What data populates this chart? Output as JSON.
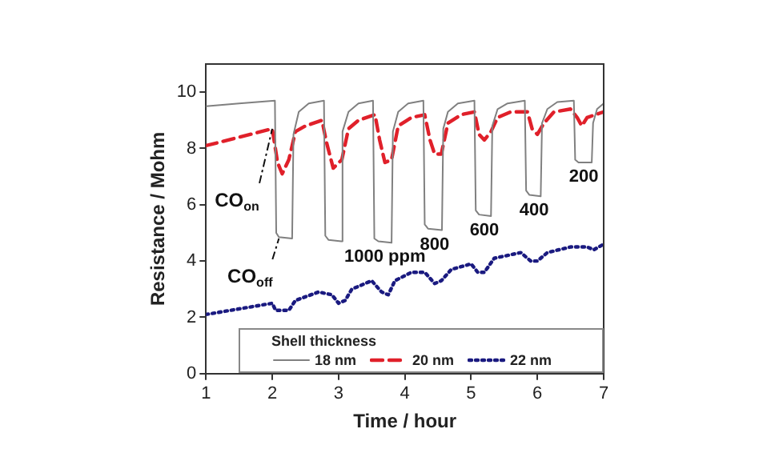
{
  "chart_data": {
    "type": "line",
    "xlabel": "Time / hour",
    "ylabel": "Resistance / Mohm",
    "legend_title": "Shell thickness",
    "legend": "bottom",
    "xlim": [
      1,
      7
    ],
    "xticks": [
      1,
      2,
      3,
      4,
      5,
      6,
      7
    ],
    "ylim": [
      0,
      11
    ],
    "yticks": [
      0,
      2,
      4,
      6,
      8,
      10
    ],
    "grid": false,
    "marker": "none",
    "series": [
      {
        "name": "18 nm",
        "color": "#808080",
        "line_style": "solid",
        "x": [
          1.0,
          1.5,
          2.04,
          2.06,
          2.1,
          2.3,
          2.32,
          2.4,
          2.55,
          2.78,
          2.8,
          2.85,
          3.04,
          3.06,
          3.15,
          3.3,
          3.52,
          3.54,
          3.6,
          3.8,
          3.82,
          3.9,
          4.05,
          4.28,
          4.3,
          4.35,
          4.56,
          4.58,
          4.65,
          4.8,
          5.05,
          5.07,
          5.12,
          5.3,
          5.32,
          5.4,
          5.55,
          5.81,
          5.83,
          5.88,
          6.05,
          6.07,
          6.15,
          6.3,
          6.55,
          6.57,
          6.62,
          6.82,
          6.84,
          6.9,
          7.0
        ],
        "values": [
          9.5,
          9.6,
          9.7,
          5.0,
          4.85,
          4.8,
          8.5,
          9.3,
          9.6,
          9.7,
          4.9,
          4.75,
          4.7,
          8.6,
          9.3,
          9.6,
          9.7,
          4.8,
          4.7,
          4.65,
          8.6,
          9.3,
          9.6,
          9.7,
          5.3,
          5.15,
          5.1,
          8.7,
          9.3,
          9.6,
          9.7,
          5.8,
          5.65,
          5.6,
          8.8,
          9.4,
          9.6,
          9.7,
          6.5,
          6.35,
          6.3,
          8.9,
          9.4,
          9.65,
          9.7,
          7.6,
          7.5,
          7.5,
          8.9,
          9.4,
          9.6
        ]
      },
      {
        "name": "20 nm",
        "color": "#e0202a",
        "line_style": "dashed",
        "x": [
          1.0,
          1.5,
          2.0,
          2.08,
          2.15,
          2.25,
          2.35,
          2.5,
          2.75,
          2.82,
          2.92,
          3.05,
          3.15,
          3.3,
          3.55,
          3.62,
          3.7,
          3.8,
          3.9,
          4.1,
          4.3,
          4.38,
          4.45,
          4.55,
          4.65,
          4.85,
          5.05,
          5.12,
          5.2,
          5.3,
          5.4,
          5.6,
          5.85,
          5.92,
          6.0,
          6.1,
          6.25,
          6.5,
          6.6,
          6.67,
          6.75,
          7.0
        ],
        "values": [
          8.1,
          8.4,
          8.7,
          7.5,
          7.1,
          7.6,
          8.6,
          8.8,
          9.0,
          8.2,
          7.3,
          7.6,
          8.7,
          9.0,
          9.2,
          8.3,
          7.5,
          7.6,
          8.8,
          9.1,
          9.2,
          8.3,
          7.8,
          7.8,
          8.9,
          9.2,
          9.3,
          8.5,
          8.3,
          8.6,
          9.1,
          9.3,
          9.3,
          8.7,
          8.5,
          8.9,
          9.3,
          9.4,
          9.1,
          8.8,
          9.1,
          9.3
        ]
      },
      {
        "name": "22 nm",
        "color": "#1a1a80",
        "line_style": "dotted",
        "x": [
          1.0,
          1.5,
          2.0,
          2.05,
          2.25,
          2.35,
          2.7,
          2.9,
          3.0,
          3.1,
          3.2,
          3.5,
          3.65,
          3.75,
          3.85,
          4.1,
          4.3,
          4.45,
          4.55,
          4.7,
          5.0,
          5.1,
          5.2,
          5.35,
          5.75,
          5.9,
          6.0,
          6.15,
          6.5,
          6.75,
          6.85,
          7.0
        ],
        "values": [
          2.1,
          2.3,
          2.5,
          2.25,
          2.25,
          2.6,
          2.9,
          2.8,
          2.5,
          2.6,
          3.0,
          3.3,
          2.9,
          2.8,
          3.3,
          3.6,
          3.6,
          3.2,
          3.3,
          3.7,
          3.9,
          3.6,
          3.6,
          4.1,
          4.3,
          4.0,
          4.0,
          4.3,
          4.5,
          4.5,
          4.4,
          4.6
        ]
      }
    ],
    "annotations": [
      {
        "text": "CO$_{on}$",
        "x": 2.0,
        "y": 8.7
      },
      {
        "text": "CO$_{off}$",
        "x": 2.1,
        "y": 4.8
      },
      {
        "text": "1000 ppm",
        "x": 3.7,
        "y": 4.65
      },
      {
        "text": "800",
        "x": 4.45,
        "y": 5.1
      },
      {
        "text": "600",
        "x": 5.2,
        "y": 5.6
      },
      {
        "text": "400",
        "x": 5.95,
        "y": 6.3
      },
      {
        "text": "200",
        "x": 6.7,
        "y": 7.5
      }
    ]
  }
}
